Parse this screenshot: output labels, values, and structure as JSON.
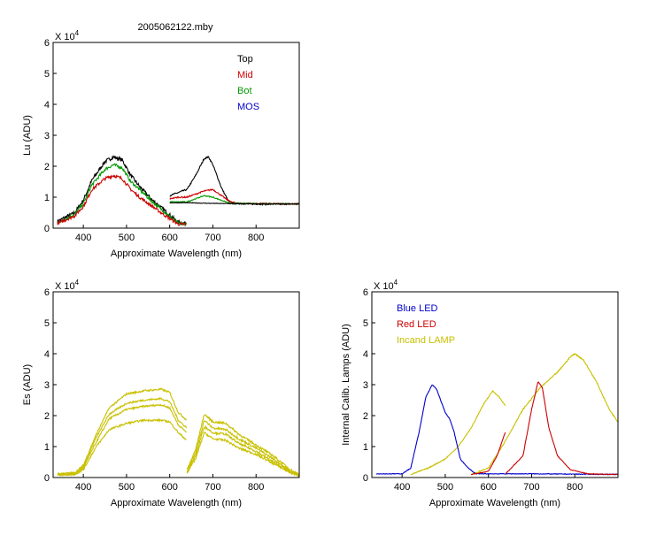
{
  "figure": {
    "title": "2005062122.mby"
  },
  "chart_data": [
    {
      "id": "lu",
      "type": "line",
      "ylabel": "Lu (ADU)",
      "xlabel": "Approximate Wavelength (nm)",
      "exponent_label": "X 10",
      "exponent_power": "4",
      "xlim": [
        330,
        900
      ],
      "ylim": [
        0,
        6
      ],
      "xticks": [
        "400",
        "500",
        "600",
        "700",
        "800"
      ],
      "yticks": [
        "0",
        "1",
        "2",
        "3",
        "4",
        "5",
        "6"
      ],
      "legend": [
        {
          "label": "Top",
          "color": "#000000"
        },
        {
          "label": "Mid",
          "color": "#cc0000"
        },
        {
          "label": "Bot",
          "color": "#009900"
        },
        {
          "label": "MOS",
          "color": "#0000cc"
        }
      ],
      "series": [
        {
          "color": "#000000",
          "noise": 0.12,
          "points": [
            [
              340,
              0.22
            ],
            [
              380,
              0.5
            ],
            [
              400,
              0.9
            ],
            [
              420,
              1.55
            ],
            [
              450,
              2.15
            ],
            [
              470,
              2.3
            ],
            [
              490,
              2.2
            ],
            [
              510,
              1.7
            ],
            [
              530,
              1.35
            ],
            [
              560,
              0.9
            ],
            [
              590,
              0.55
            ],
            [
              620,
              0.18
            ],
            [
              640,
              0.15
            ]
          ]
        },
        {
          "color": "#000000",
          "noise": 0.05,
          "points": [
            [
              600,
              1.05
            ],
            [
              620,
              1.15
            ],
            [
              640,
              1.25
            ],
            [
              660,
              1.7
            ],
            [
              680,
              2.25
            ],
            [
              690,
              2.3
            ],
            [
              700,
              2.05
            ],
            [
              720,
              1.3
            ],
            [
              735,
              0.9
            ],
            [
              745,
              0.8
            ],
            [
              800,
              0.78
            ],
            [
              900,
              0.78
            ]
          ]
        },
        {
          "color": "#009900",
          "noise": 0.1,
          "points": [
            [
              340,
              0.18
            ],
            [
              380,
              0.45
            ],
            [
              400,
              0.8
            ],
            [
              420,
              1.4
            ],
            [
              450,
              1.9
            ],
            [
              470,
              2.05
            ],
            [
              490,
              1.95
            ],
            [
              510,
              1.5
            ],
            [
              530,
              1.25
            ],
            [
              560,
              0.85
            ],
            [
              590,
              0.5
            ],
            [
              620,
              0.15
            ],
            [
              640,
              0.14
            ]
          ]
        },
        {
          "color": "#cc0000",
          "noise": 0.1,
          "points": [
            [
              340,
              0.15
            ],
            [
              380,
              0.4
            ],
            [
              400,
              0.7
            ],
            [
              420,
              1.25
            ],
            [
              450,
              1.6
            ],
            [
              470,
              1.7
            ],
            [
              490,
              1.6
            ],
            [
              510,
              1.25
            ],
            [
              530,
              1.0
            ],
            [
              560,
              0.7
            ],
            [
              590,
              0.4
            ],
            [
              620,
              0.13
            ],
            [
              640,
              0.12
            ]
          ]
        },
        {
          "color": "#cc0000",
          "noise": 0.04,
          "points": [
            [
              600,
              0.95
            ],
            [
              620,
              1.0
            ],
            [
              640,
              1.0
            ],
            [
              660,
              1.1
            ],
            [
              680,
              1.2
            ],
            [
              700,
              1.25
            ],
            [
              720,
              1.05
            ],
            [
              740,
              0.85
            ],
            [
              760,
              0.8
            ],
            [
              900,
              0.78
            ]
          ]
        },
        {
          "color": "#009900",
          "noise": 0.03,
          "points": [
            [
              600,
              0.85
            ],
            [
              640,
              0.85
            ],
            [
              680,
              1.05
            ],
            [
              700,
              1.0
            ],
            [
              740,
              0.8
            ],
            [
              900,
              0.78
            ]
          ]
        },
        {
          "color": "#000000",
          "noise": 0.02,
          "points": [
            [
              600,
              0.82
            ],
            [
              640,
              0.82
            ],
            [
              700,
              0.8
            ],
            [
              800,
              0.78
            ],
            [
              900,
              0.78
            ]
          ]
        }
      ]
    },
    {
      "id": "es",
      "type": "line",
      "ylabel": "Es (ADU)",
      "xlabel": "Approximate Wavelength (nm)",
      "exponent_label": "X 10",
      "exponent_power": "4",
      "xlim": [
        330,
        900
      ],
      "ylim": [
        0,
        6
      ],
      "xticks": [
        "400",
        "500",
        "600",
        "700",
        "800"
      ],
      "yticks": [
        "0",
        "1",
        "2",
        "3",
        "4",
        "5",
        "6"
      ],
      "legend": [],
      "series": [
        {
          "color": "#c8c000",
          "noise": 0.06,
          "points": [
            [
              340,
              0.12
            ],
            [
              380,
              0.15
            ],
            [
              400,
              0.4
            ],
            [
              430,
              1.4
            ],
            [
              460,
              2.25
            ],
            [
              500,
              2.7
            ],
            [
              540,
              2.8
            ],
            [
              580,
              2.85
            ],
            [
              600,
              2.75
            ],
            [
              620,
              2.1
            ],
            [
              640,
              1.85
            ]
          ]
        },
        {
          "color": "#c8c000",
          "noise": 0.06,
          "points": [
            [
              340,
              0.1
            ],
            [
              380,
              0.13
            ],
            [
              400,
              0.35
            ],
            [
              430,
              1.3
            ],
            [
              460,
              2.05
            ],
            [
              500,
              2.4
            ],
            [
              540,
              2.5
            ],
            [
              580,
              2.55
            ],
            [
              600,
              2.45
            ],
            [
              620,
              1.85
            ],
            [
              640,
              1.6
            ]
          ]
        },
        {
          "color": "#c8c000",
          "noise": 0.06,
          "points": [
            [
              340,
              0.1
            ],
            [
              380,
              0.12
            ],
            [
              400,
              0.3
            ],
            [
              430,
              1.15
            ],
            [
              460,
              1.9
            ],
            [
              500,
              2.2
            ],
            [
              540,
              2.3
            ],
            [
              580,
              2.35
            ],
            [
              600,
              2.25
            ],
            [
              620,
              1.7
            ],
            [
              640,
              1.45
            ]
          ]
        },
        {
          "color": "#c8c000",
          "noise": 0.06,
          "points": [
            [
              340,
              0.08
            ],
            [
              380,
              0.1
            ],
            [
              400,
              0.25
            ],
            [
              430,
              1.0
            ],
            [
              460,
              1.55
            ],
            [
              500,
              1.75
            ],
            [
              540,
              1.85
            ],
            [
              580,
              1.85
            ],
            [
              600,
              1.8
            ],
            [
              620,
              1.45
            ],
            [
              640,
              1.2
            ]
          ]
        },
        {
          "color": "#c8c000",
          "noise": 0.07,
          "points": [
            [
              640,
              0.25
            ],
            [
              660,
              0.9
            ],
            [
              680,
              2.05
            ],
            [
              700,
              1.8
            ],
            [
              730,
              1.75
            ],
            [
              760,
              1.4
            ],
            [
              800,
              1.05
            ],
            [
              840,
              0.7
            ],
            [
              880,
              0.25
            ],
            [
              900,
              0.1
            ]
          ]
        },
        {
          "color": "#c8c000",
          "noise": 0.07,
          "points": [
            [
              640,
              0.2
            ],
            [
              660,
              0.8
            ],
            [
              680,
              1.85
            ],
            [
              700,
              1.6
            ],
            [
              730,
              1.55
            ],
            [
              760,
              1.25
            ],
            [
              800,
              0.95
            ],
            [
              840,
              0.6
            ],
            [
              880,
              0.2
            ],
            [
              900,
              0.08
            ]
          ]
        },
        {
          "color": "#c8c000",
          "noise": 0.07,
          "points": [
            [
              640,
              0.18
            ],
            [
              660,
              0.7
            ],
            [
              680,
              1.65
            ],
            [
              700,
              1.45
            ],
            [
              730,
              1.4
            ],
            [
              760,
              1.1
            ],
            [
              800,
              0.85
            ],
            [
              840,
              0.5
            ],
            [
              880,
              0.18
            ],
            [
              900,
              0.07
            ]
          ]
        },
        {
          "color": "#c8c000",
          "noise": 0.07,
          "points": [
            [
              640,
              0.15
            ],
            [
              660,
              0.6
            ],
            [
              680,
              1.45
            ],
            [
              700,
              1.25
            ],
            [
              730,
              1.2
            ],
            [
              760,
              0.95
            ],
            [
              800,
              0.75
            ],
            [
              840,
              0.45
            ],
            [
              880,
              0.15
            ],
            [
              900,
              0.06
            ]
          ]
        }
      ]
    },
    {
      "id": "lamps",
      "type": "line",
      "ylabel": "Internal Calib. Lamps (ADU)",
      "xlabel": "Approximate Wavelength (nm)",
      "exponent_label": "X 10",
      "exponent_power": "4",
      "xlim": [
        330,
        900
      ],
      "ylim": [
        0,
        6
      ],
      "xticks": [
        "400",
        "500",
        "600",
        "700",
        "800"
      ],
      "yticks": [
        "0",
        "1",
        "2",
        "3",
        "4",
        "5",
        "6"
      ],
      "legend": [
        {
          "label": "Blue LED",
          "color": "#0000cc"
        },
        {
          "label": "Red LED",
          "color": "#cc0000"
        },
        {
          "label": "Incand LAMP",
          "color": "#c8c000"
        }
      ],
      "series": [
        {
          "color": "#c8c000",
          "noise": 0.03,
          "points": [
            [
              420,
              0.1
            ],
            [
              460,
              0.3
            ],
            [
              500,
              0.6
            ],
            [
              530,
              1.0
            ],
            [
              560,
              1.6
            ],
            [
              590,
              2.4
            ],
            [
              610,
              2.8
            ],
            [
              625,
              2.6
            ],
            [
              640,
              2.3
            ]
          ]
        },
        {
          "color": "#c8c000",
          "noise": 0.04,
          "points": [
            [
              560,
              0.1
            ],
            [
              600,
              0.3
            ],
            [
              640,
              1.2
            ],
            [
              680,
              2.2
            ],
            [
              720,
              2.9
            ],
            [
              760,
              3.4
            ],
            [
              790,
              3.9
            ],
            [
              800,
              4.0
            ],
            [
              820,
              3.8
            ],
            [
              850,
              3.1
            ],
            [
              880,
              2.2
            ],
            [
              900,
              1.8
            ]
          ]
        },
        {
          "color": "#0000cc",
          "noise": 0.02,
          "points": [
            [
              340,
              0.12
            ],
            [
              400,
              0.12
            ],
            [
              420,
              0.3
            ],
            [
              440,
              1.5
            ],
            [
              455,
              2.6
            ],
            [
              470,
              3.0
            ],
            [
              480,
              2.85
            ],
            [
              500,
              2.1
            ],
            [
              510,
              1.9
            ],
            [
              520,
              1.5
            ],
            [
              535,
              0.6
            ],
            [
              550,
              0.35
            ],
            [
              570,
              0.12
            ],
            [
              640,
              0.12
            ],
            [
              700,
              0.12
            ],
            [
              900,
              0.1
            ]
          ]
        },
        {
          "color": "#cc0000",
          "noise": 0.02,
          "points": [
            [
              560,
              0.1
            ],
            [
              600,
              0.2
            ],
            [
              620,
              0.7
            ],
            [
              640,
              1.5
            ]
          ]
        },
        {
          "color": "#cc0000",
          "noise": 0.02,
          "points": [
            [
              640,
              0.12
            ],
            [
              680,
              0.7
            ],
            [
              700,
              2.2
            ],
            [
              715,
              3.1
            ],
            [
              725,
              2.9
            ],
            [
              740,
              1.6
            ],
            [
              760,
              0.7
            ],
            [
              790,
              0.25
            ],
            [
              830,
              0.12
            ],
            [
              900,
              0.1
            ]
          ]
        }
      ]
    }
  ]
}
